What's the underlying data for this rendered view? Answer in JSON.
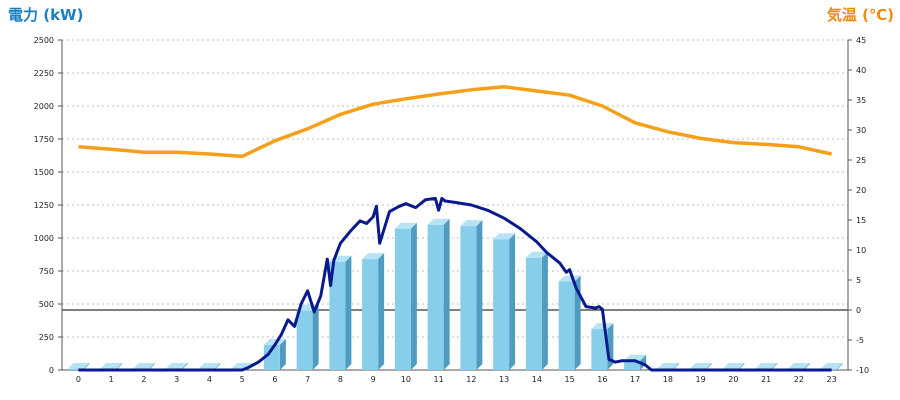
{
  "chart_data": {
    "type": "bar+line",
    "ylabel_left": "電力 (kW)",
    "ylabel_right": "気温 (℃)",
    "x_ticks": [
      "0",
      "1",
      "2",
      "3",
      "4",
      "5",
      "6",
      "7",
      "8",
      "9",
      "10",
      "11",
      "12",
      "13",
      "14",
      "15",
      "16",
      "17",
      "18",
      "19",
      "20",
      "21",
      "22",
      "23"
    ],
    "y_left_ticks": [
      "0",
      "250",
      "500",
      "750",
      "1000",
      "1250",
      "1500",
      "1750",
      "2000",
      "2250",
      "2500"
    ],
    "y_right_ticks": [
      "-10",
      "-5",
      "0",
      "5",
      "10",
      "15",
      "20",
      "25",
      "30",
      "35",
      "40",
      "45"
    ],
    "ylim_left": [
      0,
      2500
    ],
    "ylim_right": [
      -10,
      45
    ],
    "grid": "horizontal dashed",
    "bars": {
      "name": "hourly power",
      "color": "#87ceeb",
      "x": [
        0,
        1,
        2,
        3,
        4,
        5,
        6,
        7,
        8,
        9,
        10,
        11,
        12,
        13,
        14,
        15,
        16,
        17,
        18,
        19,
        20,
        21,
        22,
        23
      ],
      "values": [
        0,
        0,
        0,
        0,
        0,
        0,
        190,
        450,
        820,
        840,
        1070,
        1100,
        1090,
        990,
        850,
        670,
        310,
        70,
        0,
        0,
        0,
        0,
        0,
        0
      ]
    },
    "power_line": {
      "name": "power",
      "color": "#0a1a8c",
      "x": [
        0,
        4,
        5,
        5.2,
        5.5,
        5.8,
        6,
        6.2,
        6.4,
        6.6,
        6.8,
        7,
        7.2,
        7.4,
        7.6,
        7.7,
        7.8,
        8,
        8.3,
        8.6,
        8.8,
        9,
        9.1,
        9.2,
        9.5,
        9.8,
        10,
        10.3,
        10.6,
        10.9,
        11,
        11.1,
        11.2,
        11.5,
        12,
        12.5,
        13,
        13.5,
        14,
        14.3,
        14.7,
        14.9,
        15,
        15.2,
        15.5,
        15.8,
        15.9,
        16,
        16.1,
        16.2,
        16.4,
        16.6,
        16.8,
        17,
        17.3,
        17.5,
        23
      ],
      "values": [
        0,
        0,
        0,
        20,
        60,
        120,
        190,
        270,
        380,
        330,
        500,
        600,
        440,
        560,
        840,
        640,
        830,
        960,
        1050,
        1130,
        1110,
        1160,
        1240,
        960,
        1200,
        1240,
        1260,
        1230,
        1290,
        1300,
        1210,
        1300,
        1280,
        1270,
        1250,
        1210,
        1150,
        1070,
        970,
        890,
        810,
        740,
        760,
        620,
        480,
        470,
        480,
        460,
        270,
        80,
        60,
        70,
        70,
        70,
        40,
        0,
        0
      ]
    },
    "temp_line": {
      "name": "temperature",
      "color": "#f5a01a",
      "x": [
        0,
        1,
        2,
        3,
        4,
        5,
        6,
        7,
        8,
        9,
        10,
        11,
        12,
        13,
        14,
        15,
        16,
        17,
        18,
        19,
        20,
        21,
        22,
        23
      ],
      "values": [
        27.2,
        26.8,
        26.3,
        26.3,
        26.0,
        25.6,
        28.2,
        30.2,
        32.6,
        34.3,
        35.2,
        36.0,
        36.7,
        37.2,
        36.5,
        35.8,
        34.0,
        31.2,
        29.7,
        28.6,
        27.9,
        27.6,
        27.2,
        26.0
      ]
    },
    "baseline": {
      "value_right": 0,
      "color": "#000000"
    }
  }
}
